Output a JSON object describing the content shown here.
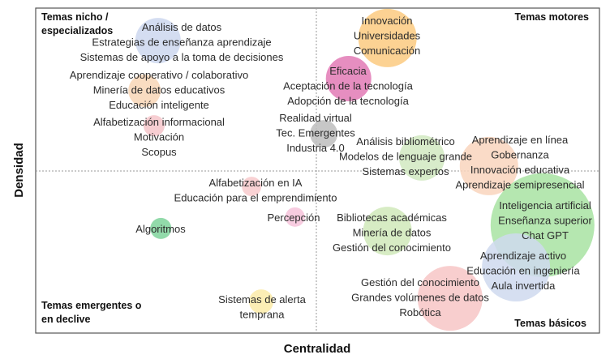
{
  "chart_data": {
    "type": "scatter",
    "subtype": "bubble strategic diagram",
    "xlabel": "Centralidad",
    "ylabel": "Densidad",
    "xlim": [
      0,
      100
    ],
    "ylim": [
      0,
      100
    ],
    "quadrant_split": {
      "x": 50,
      "y": 50
    },
    "quadrants": {
      "top_left": [
        "Temas nicho /",
        "especializados"
      ],
      "top_right": [
        "Temas motores"
      ],
      "bottom_left": [
        "Temas emergentes o",
        "en declive"
      ],
      "bottom_right": [
        "Temas básicos"
      ]
    },
    "clusters": [
      {
        "centrality": 21.7,
        "density": 90.0,
        "size": 28,
        "color": "#cdd7ee",
        "labels": [
          "Análisis de datos",
          "Estrategias de enseñanza aprendizaje",
          "Sistemas de apoyo a la toma de decisiones"
        ]
      },
      {
        "centrality": 19.3,
        "density": 74.6,
        "size": 20,
        "color": "#f8d6b6",
        "labels": [
          "Aprendizaje cooperativo / colaborativo",
          "Minería de datos educativos",
          "Educación inteligente"
        ]
      },
      {
        "centrality": 21.0,
        "density": 63.8,
        "size": 13,
        "color": "#f6c6ca",
        "labels": [
          "Alfabetización informacional",
          "Motivación",
          "Scopus"
        ]
      },
      {
        "centrality": 62.4,
        "density": 90.8,
        "size": 36,
        "color": "#fbca80",
        "labels": [
          "Innovación",
          "Universidades",
          "Comunicación"
        ]
      },
      {
        "centrality": 55.5,
        "density": 78.3,
        "size": 28,
        "color": "#e27ab5",
        "labels": [
          "Eficacia",
          "Aceptación de la tecnología",
          "Adopción de la tecnología"
        ]
      },
      {
        "centrality": 51.1,
        "density": 61.3,
        "size": 17,
        "color": "#bdbdbd",
        "labels": [
          "Realidad virtual",
          "Tec. Emergentes",
          "Industria 4.0"
        ]
      },
      {
        "centrality": 68.5,
        "density": 53.9,
        "size": 28,
        "color": "#d1e9c1",
        "labels": [
          "Análisis bibliométrico",
          "Modelos de lenguaje grande",
          "Sistemas expertos"
        ]
      },
      {
        "centrality": 80.4,
        "density": 51.4,
        "size": 36,
        "color": "#f9d5bd",
        "labels": [
          "Aprendizaje en línea",
          "Gobernanza",
          "Innovación educativa",
          "Aprendizaje semipresencial"
        ]
      },
      {
        "centrality": 38.3,
        "density": 45.1,
        "size": 12,
        "color": "#f8cacd",
        "labels": [
          "Alfabetización en IA",
          "Educación para el emprendimiento"
        ]
      },
      {
        "centrality": 46.0,
        "density": 35.7,
        "size": 12,
        "color": "#f6c3da",
        "labels": [
          "Percepción"
        ]
      },
      {
        "centrality": 22.2,
        "density": 32.2,
        "size": 13,
        "color": "#7fd39b",
        "labels": [
          "Algoritmos"
        ]
      },
      {
        "centrality": 62.4,
        "density": 31.4,
        "size": 30,
        "color": "#d0e9ba",
        "labels": [
          "Bibliotecas académicas",
          "Minería de datos",
          "Gestión del conocimiento"
        ]
      },
      {
        "centrality": 89.9,
        "density": 33.2,
        "size": 64,
        "color": "#a8e3a2",
        "labels": [
          "Inteligencia artificial",
          "Enseñanza superior",
          "Chat GPT"
        ]
      },
      {
        "centrality": 85.2,
        "density": 20.2,
        "size": 42,
        "color": "#cfd9ee",
        "labels": [
          "Aprendizaje activo",
          "Educación en ingeniería",
          "Aula invertida"
        ]
      },
      {
        "centrality": 73.5,
        "density": 10.7,
        "size": 40,
        "color": "#f7c5c5",
        "labels": [
          "Gestión del conocimiento",
          "Grandes volúmenes de datos",
          "Robótica"
        ]
      },
      {
        "centrality": 40.0,
        "density": 9.7,
        "size": 15,
        "color": "#fbeba8",
        "labels": [
          "Sistemas de alerta",
          "temprana"
        ]
      }
    ]
  }
}
